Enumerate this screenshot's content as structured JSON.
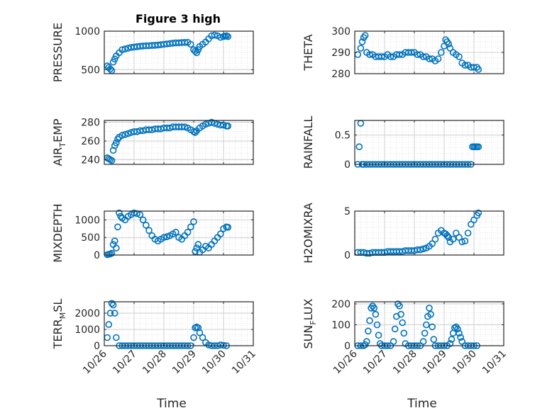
{
  "figure": {
    "title": "Figure 3 high",
    "marker_color": "#0072bd"
  },
  "chart_data": [
    {
      "type": "scatter",
      "ylabel": "PRESSURE",
      "xlabel": "",
      "xlim": [
        0,
        5
      ],
      "ylim": [
        450,
        1000
      ],
      "yticks": [
        500,
        1000
      ],
      "ytick_labels": [
        "500",
        "1000"
      ],
      "grid": true,
      "minor_grid": true,
      "x": [
        0.1,
        0.15,
        0.2,
        0.25,
        0.3,
        0.35,
        0.4,
        0.5,
        0.6,
        0.7,
        0.8,
        0.9,
        1.0,
        1.1,
        1.2,
        1.3,
        1.4,
        1.5,
        1.6,
        1.7,
        1.8,
        1.9,
        2.0,
        2.1,
        2.2,
        2.3,
        2.4,
        2.5,
        2.6,
        2.7,
        2.8,
        2.9,
        3.0,
        3.05,
        3.1,
        3.15,
        3.2,
        3.3,
        3.4,
        3.5,
        3.6,
        3.7,
        3.8,
        3.9,
        4.0,
        4.05,
        4.1,
        4.15
      ],
      "y": [
        550,
        530,
        510,
        490,
        600,
        640,
        680,
        720,
        760,
        770,
        780,
        790,
        795,
        800,
        805,
        808,
        810,
        812,
        815,
        818,
        820,
        825,
        830,
        835,
        840,
        845,
        850,
        850,
        852,
        855,
        855,
        830,
        760,
        740,
        720,
        760,
        800,
        830,
        860,
        900,
        940,
        950,
        940,
        920,
        930,
        935,
        940,
        930
      ]
    },
    {
      "type": "scatter",
      "ylabel": "THETA",
      "xlabel": "",
      "xlim": [
        0,
        5
      ],
      "ylim": [
        280,
        300
      ],
      "yticks": [
        280,
        290,
        300
      ],
      "ytick_labels": [
        "280",
        "290",
        "300"
      ],
      "grid": true,
      "minor_grid": true,
      "x": [
        0.1,
        0.2,
        0.25,
        0.3,
        0.35,
        0.4,
        0.5,
        0.6,
        0.7,
        0.8,
        0.9,
        1.0,
        1.1,
        1.2,
        1.3,
        1.4,
        1.5,
        1.6,
        1.7,
        1.8,
        1.9,
        2.0,
        2.1,
        2.2,
        2.3,
        2.4,
        2.5,
        2.6,
        2.7,
        2.8,
        2.9,
        3.0,
        3.05,
        3.1,
        3.15,
        3.2,
        3.3,
        3.4,
        3.5,
        3.6,
        3.7,
        3.8,
        3.9,
        4.0,
        4.1,
        4.15
      ],
      "y": [
        289,
        292,
        295,
        297,
        298,
        290,
        289,
        289,
        288,
        288,
        288,
        288,
        289,
        288,
        288,
        289,
        289,
        289,
        290,
        290,
        290,
        290,
        289,
        289,
        288,
        288,
        287,
        287,
        286,
        287,
        290,
        293,
        296,
        295,
        294,
        292,
        290,
        289,
        288,
        285,
        284,
        284,
        283,
        283,
        283,
        282
      ]
    },
    {
      "type": "scatter",
      "ylabel": "AIR_TEMP",
      "xlabel": "",
      "xlim": [
        0,
        5
      ],
      "ylim": [
        235,
        282
      ],
      "yticks": [
        240,
        260,
        280
      ],
      "ytick_labels": [
        "240",
        "260",
        "280"
      ],
      "grid": true,
      "minor_grid": true,
      "x": [
        0.1,
        0.15,
        0.2,
        0.25,
        0.3,
        0.35,
        0.4,
        0.45,
        0.5,
        0.6,
        0.7,
        0.8,
        0.9,
        1.0,
        1.1,
        1.2,
        1.3,
        1.4,
        1.5,
        1.6,
        1.7,
        1.8,
        1.9,
        2.0,
        2.1,
        2.2,
        2.3,
        2.4,
        2.5,
        2.6,
        2.7,
        2.8,
        2.9,
        3.0,
        3.05,
        3.1,
        3.2,
        3.3,
        3.4,
        3.5,
        3.6,
        3.7,
        3.8,
        3.9,
        4.0,
        4.1,
        4.15
      ],
      "y": [
        242,
        241,
        240,
        239,
        250,
        255,
        258,
        262,
        264,
        266,
        267,
        268,
        269,
        270,
        270,
        271,
        271,
        272,
        272,
        272,
        273,
        273,
        273,
        274,
        274,
        274,
        275,
        275,
        275,
        275,
        275,
        274,
        272,
        270,
        269,
        271,
        274,
        276,
        278,
        279,
        280,
        279,
        278,
        277,
        277,
        276,
        276
      ]
    },
    {
      "type": "scatter",
      "ylabel": "RAINFALL",
      "xlabel": "",
      "xlim": [
        0,
        5
      ],
      "ylim": [
        0,
        0.75
      ],
      "yticks": [
        0,
        0.5
      ],
      "ytick_labels": [
        "0",
        "0.5"
      ],
      "grid": true,
      "minor_grid": true,
      "x": [
        0.1,
        0.15,
        0.2,
        0.25,
        0.3,
        0.4,
        0.5,
        0.6,
        0.7,
        0.8,
        0.9,
        1.0,
        1.1,
        1.2,
        1.3,
        1.4,
        1.5,
        1.6,
        1.7,
        1.8,
        1.9,
        2.0,
        2.1,
        2.2,
        2.3,
        2.4,
        2.5,
        2.6,
        2.7,
        2.8,
        2.9,
        3.0,
        3.1,
        3.2,
        3.3,
        3.4,
        3.5,
        3.6,
        3.7,
        3.8,
        3.9,
        3.95,
        4.0,
        4.05,
        4.1,
        4.15
      ],
      "y": [
        0,
        0.3,
        0.7,
        0,
        0,
        0,
        0,
        0,
        0,
        0,
        0,
        0,
        0,
        0,
        0,
        0,
        0,
        0,
        0,
        0,
        0,
        0,
        0,
        0,
        0,
        0,
        0,
        0,
        0,
        0,
        0,
        0,
        0,
        0,
        0,
        0,
        0,
        0,
        0,
        0,
        0,
        0.3,
        0.3,
        0.3,
        0.3,
        0.3
      ]
    },
    {
      "type": "scatter",
      "ylabel": "MIXDEPTH",
      "xlabel": "",
      "xlim": [
        0,
        5
      ],
      "ylim": [
        0,
        1250
      ],
      "yticks": [
        0,
        500,
        1000
      ],
      "ytick_labels": [
        "0",
        "500",
        "1000"
      ],
      "grid": true,
      "minor_grid": true,
      "x": [
        0.1,
        0.15,
        0.2,
        0.25,
        0.3,
        0.35,
        0.4,
        0.45,
        0.5,
        0.55,
        0.6,
        0.7,
        0.8,
        0.9,
        1.0,
        1.1,
        1.2,
        1.3,
        1.4,
        1.5,
        1.6,
        1.7,
        1.8,
        1.9,
        2.0,
        2.1,
        2.2,
        2.3,
        2.4,
        2.5,
        2.6,
        2.7,
        2.8,
        2.9,
        3.0,
        3.05,
        3.1,
        3.15,
        3.2,
        3.3,
        3.4,
        3.5,
        3.6,
        3.7,
        3.8,
        3.9,
        4.0,
        4.1,
        4.15
      ],
      "y": [
        10,
        20,
        30,
        50,
        300,
        400,
        200,
        800,
        1200,
        1100,
        1050,
        1000,
        1100,
        1150,
        1200,
        1180,
        1150,
        1000,
        850,
        700,
        550,
        450,
        400,
        450,
        500,
        520,
        550,
        600,
        650,
        500,
        450,
        550,
        650,
        800,
        950,
        100,
        200,
        300,
        80,
        150,
        250,
        200,
        300,
        400,
        500,
        600,
        750,
        800,
        790
      ]
    },
    {
      "type": "scatter",
      "ylabel": "H2OMIXRA",
      "xlabel": "",
      "xlim": [
        0,
        5
      ],
      "ylim": [
        0,
        5
      ],
      "yticks": [
        0,
        5
      ],
      "ytick_labels": [
        "0",
        "5"
      ],
      "grid": true,
      "minor_grid": true,
      "x": [
        0.1,
        0.2,
        0.3,
        0.4,
        0.5,
        0.6,
        0.7,
        0.8,
        0.9,
        1.0,
        1.1,
        1.2,
        1.3,
        1.4,
        1.5,
        1.6,
        1.7,
        1.8,
        1.9,
        2.0,
        2.1,
        2.2,
        2.3,
        2.4,
        2.5,
        2.6,
        2.7,
        2.8,
        2.9,
        3.0,
        3.05,
        3.1,
        3.15,
        3.2,
        3.3,
        3.4,
        3.5,
        3.6,
        3.7,
        3.8,
        3.9,
        4.0,
        4.1,
        4.15
      ],
      "y": [
        0.3,
        0.3,
        0.3,
        0.2,
        0.2,
        0.3,
        0.3,
        0.3,
        0.3,
        0.3,
        0.4,
        0.4,
        0.4,
        0.4,
        0.4,
        0.4,
        0.5,
        0.5,
        0.5,
        0.5,
        0.6,
        0.6,
        0.7,
        0.8,
        1.0,
        1.3,
        1.8,
        2.5,
        2.8,
        2.5,
        2.4,
        2.2,
        2.0,
        1.5,
        1.8,
        2.5,
        2.0,
        1.5,
        1.6,
        2.5,
        3.5,
        4.0,
        4.5,
        4.8
      ]
    },
    {
      "type": "scatter",
      "ylabel": "TERR_MSL",
      "xlabel": "Time",
      "xlim": [
        0,
        5
      ],
      "ylim": [
        0,
        2700
      ],
      "yticks": [
        0,
        1000,
        2000
      ],
      "ytick_labels": [
        "0",
        "1000",
        "2000"
      ],
      "xticks": [
        0,
        1,
        2,
        3,
        4,
        5
      ],
      "xtick_labels": [
        "10/26",
        "10/27",
        "10/28",
        "10/29",
        "10/30",
        "10/31"
      ],
      "grid": true,
      "minor_grid": true,
      "x": [
        0.1,
        0.15,
        0.2,
        0.25,
        0.3,
        0.35,
        0.4,
        0.5,
        0.6,
        0.7,
        0.8,
        0.9,
        1.0,
        1.1,
        1.2,
        1.3,
        1.4,
        1.5,
        1.6,
        1.7,
        1.8,
        1.9,
        2.0,
        2.1,
        2.2,
        2.3,
        2.4,
        2.5,
        2.6,
        2.7,
        2.8,
        2.9,
        3.0,
        3.05,
        3.1,
        3.15,
        3.2,
        3.3,
        3.4,
        3.5,
        3.6,
        3.7,
        3.8,
        3.9,
        4.0,
        4.1
      ],
      "y": [
        500,
        1300,
        2000,
        2600,
        2500,
        2000,
        500,
        0,
        0,
        0,
        0,
        0,
        0,
        0,
        0,
        0,
        0,
        0,
        0,
        0,
        0,
        0,
        0,
        0,
        0,
        0,
        0,
        0,
        0,
        0,
        0,
        0,
        500,
        1100,
        1150,
        1100,
        800,
        500,
        200,
        50,
        0,
        0,
        0,
        50,
        20,
        0
      ]
    },
    {
      "type": "scatter",
      "ylabel": "SUN_FLUX",
      "xlabel": "Time",
      "xlim": [
        0,
        5
      ],
      "ylim": [
        0,
        210
      ],
      "yticks": [
        0,
        100,
        200
      ],
      "ytick_labels": [
        "0",
        "100",
        "200"
      ],
      "xticks": [
        0,
        1,
        2,
        3,
        4,
        5
      ],
      "xtick_labels": [
        "10/26",
        "10/27",
        "10/28",
        "10/29",
        "10/30",
        "10/31"
      ],
      "grid": true,
      "minor_grid": true,
      "x": [
        0.1,
        0.2,
        0.3,
        0.35,
        0.4,
        0.45,
        0.5,
        0.55,
        0.6,
        0.65,
        0.7,
        0.75,
        0.8,
        0.85,
        0.9,
        1.0,
        1.1,
        1.2,
        1.3,
        1.35,
        1.4,
        1.45,
        1.5,
        1.55,
        1.6,
        1.65,
        1.7,
        1.8,
        1.9,
        2.0,
        2.1,
        2.2,
        2.3,
        2.35,
        2.4,
        2.45,
        2.5,
        2.55,
        2.6,
        2.65,
        2.7,
        2.8,
        2.9,
        3.0,
        3.1,
        3.2,
        3.25,
        3.3,
        3.35,
        3.4,
        3.45,
        3.5,
        3.55,
        3.6,
        3.7,
        3.8,
        3.9,
        4.0,
        4.1
      ],
      "y": [
        0,
        0,
        0,
        5,
        20,
        70,
        120,
        180,
        190,
        180,
        150,
        100,
        50,
        10,
        0,
        0,
        0,
        0,
        20,
        80,
        140,
        200,
        190,
        150,
        110,
        60,
        10,
        0,
        0,
        0,
        0,
        0,
        20,
        60,
        100,
        140,
        180,
        150,
        90,
        30,
        0,
        0,
        0,
        0,
        0,
        10,
        30,
        60,
        85,
        90,
        80,
        60,
        40,
        20,
        0,
        0,
        0,
        0,
        0
      ]
    }
  ]
}
